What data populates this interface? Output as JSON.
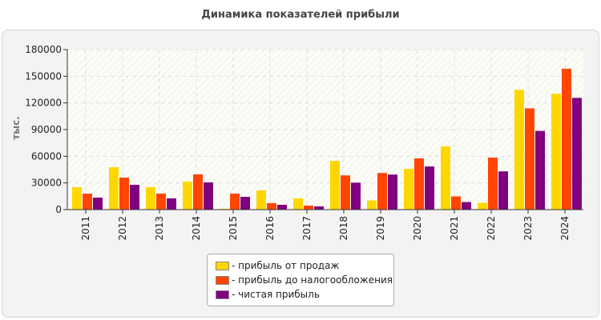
{
  "chart_data": {
    "type": "bar",
    "title": "Динамика показателей прибыли",
    "ylabel": "тыс.",
    "xlabel": "",
    "ylim": [
      0,
      180000
    ],
    "yticks": [
      0,
      30000,
      60000,
      90000,
      120000,
      150000,
      180000
    ],
    "grid": true,
    "legend_position": "bottom",
    "categories": [
      "2011",
      "2012",
      "2013",
      "2014",
      "2015",
      "2016",
      "2017",
      "2018",
      "2019",
      "2020",
      "2021",
      "2022",
      "2023",
      "2024"
    ],
    "series": [
      {
        "name": "- прибыль от продаж",
        "color": "#FFD700",
        "values": [
          25200,
          47700,
          25200,
          31500,
          900,
          21600,
          12600,
          54800,
          10300,
          45800,
          71200,
          7600,
          134800,
          130300
        ]
      },
      {
        "name": "- прибыль до налогообложения",
        "color": "#FF4500",
        "values": [
          18000,
          36000,
          18000,
          39600,
          18000,
          7200,
          4500,
          38500,
          41200,
          57600,
          14800,
          58500,
          113900,
          158500
        ]
      },
      {
        "name": "- чистая прибыль",
        "color": "#800080",
        "values": [
          13500,
          27900,
          12600,
          30600,
          14400,
          5400,
          3600,
          30300,
          39400,
          48500,
          8500,
          43000,
          88500,
          125700
        ]
      }
    ]
  }
}
